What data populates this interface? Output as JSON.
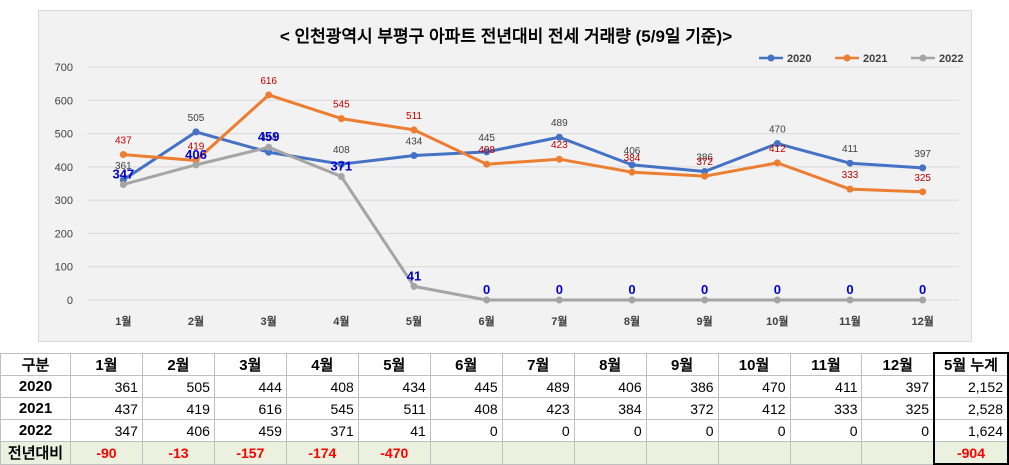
{
  "chart_data": {
    "type": "line",
    "title": "< 인천광역시 부평구  아파트 전년대비 전세 거래량 (5/9일 기준)>",
    "categories": [
      "1월",
      "2월",
      "3월",
      "4월",
      "5월",
      "6월",
      "7월",
      "8월",
      "9월",
      "10월",
      "11월",
      "12월"
    ],
    "ylim": [
      0,
      700
    ],
    "yticks": [
      0,
      100,
      200,
      300,
      400,
      500,
      600,
      700
    ],
    "grid": true,
    "legend_position": "top-right",
    "series": [
      {
        "name": "2020",
        "color": "#4472c4",
        "labelColor": "#404040",
        "values": [
          361,
          505,
          444,
          408,
          434,
          445,
          489,
          406,
          386,
          470,
          411,
          397
        ]
      },
      {
        "name": "2021",
        "color": "#ed7d31",
        "labelColor": "#c00000",
        "values": [
          437,
          419,
          616,
          545,
          511,
          408,
          423,
          384,
          372,
          412,
          333,
          325
        ]
      },
      {
        "name": "2022",
        "color": "#a5a5a5",
        "labelColor": "#0000cc",
        "values": [
          347,
          406,
          459,
          371,
          41,
          0,
          0,
          0,
          0,
          0,
          0,
          0
        ]
      }
    ]
  },
  "table": {
    "header": [
      "구분",
      "1월",
      "2월",
      "3월",
      "4월",
      "5월",
      "6월",
      "7월",
      "8월",
      "9월",
      "10월",
      "11월",
      "12월",
      "5월 누계"
    ],
    "rows": [
      {
        "label": "2020",
        "cells": [
          "361",
          "505",
          "444",
          "408",
          "434",
          "445",
          "489",
          "406",
          "386",
          "470",
          "411",
          "397",
          "2,152"
        ]
      },
      {
        "label": "2021",
        "cells": [
          "437",
          "419",
          "616",
          "545",
          "511",
          "408",
          "423",
          "384",
          "372",
          "412",
          "333",
          "325",
          "2,528"
        ]
      },
      {
        "label": "2022",
        "cells": [
          "347",
          "406",
          "459",
          "371",
          "41",
          "0",
          "0",
          "0",
          "0",
          "0",
          "0",
          "0",
          "1,624"
        ]
      },
      {
        "label": "전년대비",
        "cells": [
          "-90",
          "-13",
          "-157",
          "-174",
          "-470",
          "",
          "",
          "",
          "",
          "",
          "",
          "",
          "-904"
        ]
      }
    ]
  }
}
